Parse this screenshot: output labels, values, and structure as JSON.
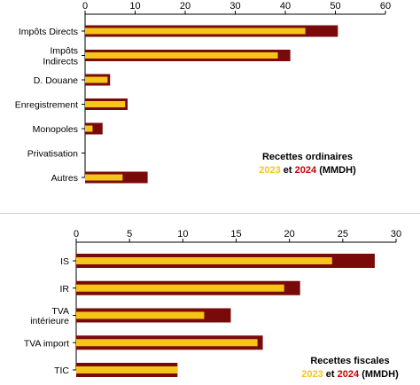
{
  "colors": {
    "y2023": "#f5c518",
    "y2024": "#7a0a0a",
    "divider": "#d0d0d0"
  },
  "chart_data": [
    {
      "type": "bar",
      "orientation": "horizontal",
      "title": "Recettes ordinaires",
      "legend": {
        "year1": "2023",
        "conj": "et",
        "year2": "2024",
        "unit": "(MMDH)"
      },
      "categories": [
        "Impôts Directs",
        "Impôts Indirects",
        "D. Douane",
        "Enregistrement",
        "Monopoles",
        "Privatisation",
        "Autres"
      ],
      "category_lines": [
        [
          "Impôts Directs"
        ],
        [
          "Impôts",
          "Indirects"
        ],
        [
          "D. Douane"
        ],
        [
          "Enregistrement"
        ],
        [
          "Monopoles"
        ],
        [
          "Privatisation"
        ],
        [
          "Autres"
        ]
      ],
      "series": [
        {
          "name": "2023",
          "values": [
            44.0,
            38.5,
            4.5,
            8.0,
            1.5,
            0,
            7.5
          ]
        },
        {
          "name": "2024",
          "values": [
            50.5,
            41.0,
            5.0,
            8.5,
            3.5,
            0,
            12.5
          ]
        }
      ],
      "xlim": [
        0,
        60
      ],
      "xticks": [
        0,
        10,
        20,
        30,
        40,
        50,
        60
      ],
      "axis_position": "top"
    },
    {
      "type": "bar",
      "orientation": "horizontal",
      "title": "Recettes fiscales",
      "legend": {
        "year1": "2023",
        "conj": "et",
        "year2": "2024",
        "unit": "(MMDH)"
      },
      "categories": [
        "IS",
        "IR",
        "TVA intérieure",
        "TVA import",
        "TIC"
      ],
      "category_lines": [
        [
          "IS"
        ],
        [
          "IR"
        ],
        [
          "TVA",
          "intérieure"
        ],
        [
          "TVA import"
        ],
        [
          "TIC"
        ]
      ],
      "series": [
        {
          "name": "2023",
          "values": [
            24.0,
            19.5,
            12.0,
            17.0,
            9.5
          ]
        },
        {
          "name": "2024",
          "values": [
            28.0,
            21.0,
            14.5,
            17.5,
            9.5
          ]
        }
      ],
      "xlim": [
        0,
        30
      ],
      "xticks": [
        0,
        5,
        10,
        15,
        20,
        25,
        30
      ],
      "axis_position": "top"
    }
  ]
}
